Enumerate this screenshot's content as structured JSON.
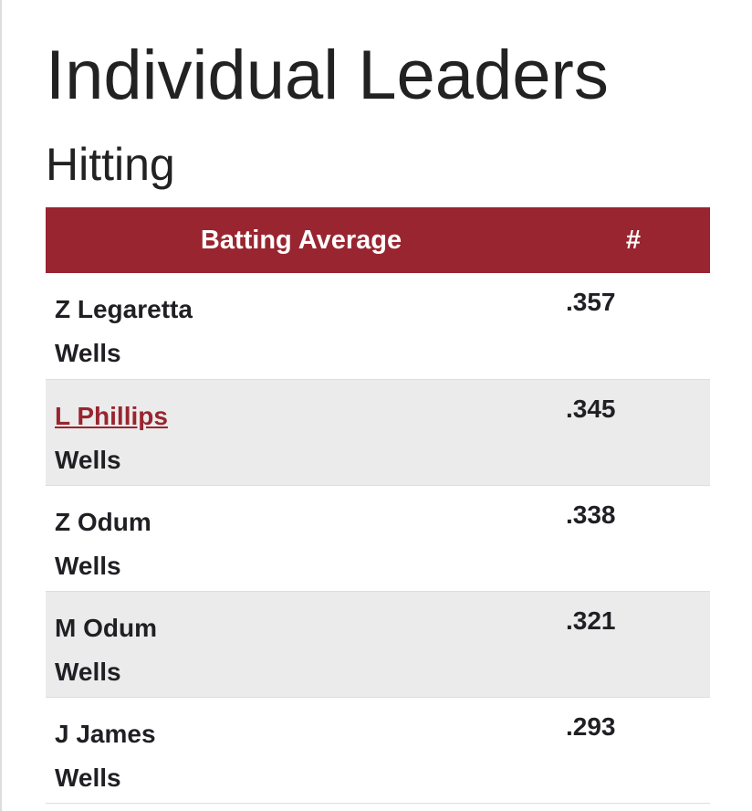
{
  "header": {
    "title": "Individual Leaders",
    "subtitle": "Hitting"
  },
  "table": {
    "columns": [
      "Batting Average",
      "#"
    ],
    "rows": [
      {
        "name": "Z Legaretta",
        "team": "Wells",
        "value": ".357",
        "link": false
      },
      {
        "name": "L Phillips",
        "team": "Wells",
        "value": ".345",
        "link": true
      },
      {
        "name": "Z Odum",
        "team": "Wells",
        "value": ".338",
        "link": false
      },
      {
        "name": "M Odum",
        "team": "Wells",
        "value": ".321",
        "link": false
      },
      {
        "name": "J James",
        "team": "Wells",
        "value": ".293",
        "link": false
      }
    ]
  }
}
